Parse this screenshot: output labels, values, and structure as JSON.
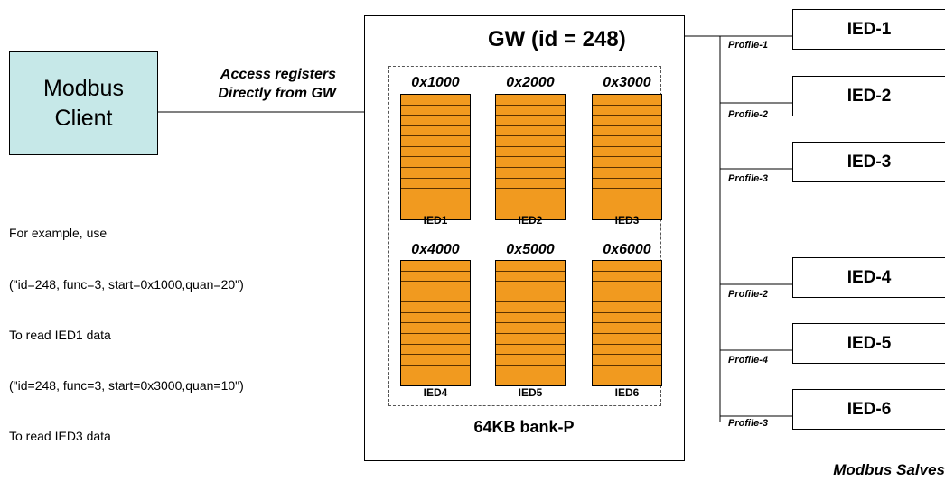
{
  "client": {
    "line1": "Modbus",
    "line2": "Client"
  },
  "access": {
    "line1": "Access registers",
    "line2": "Directly from GW"
  },
  "example": {
    "lines": [
      "For example, use",
      "(\"id=248, func=3, start=0x1000,quan=20\")",
      "To read IED1 data",
      "(\"id=248, func=3, start=0x3000,quan=10\")",
      "To read IED3 data"
    ]
  },
  "gateway": {
    "title": "GW (id = 248)",
    "bank_label": "64KB bank-P"
  },
  "register_blocks": [
    {
      "address": "0x1000",
      "ied": "IED1"
    },
    {
      "address": "0x2000",
      "ied": "IED2"
    },
    {
      "address": "0x3000",
      "ied": "IED3"
    },
    {
      "address": "0x4000",
      "ied": "IED4"
    },
    {
      "address": "0x5000",
      "ied": "IED5"
    },
    {
      "address": "0x6000",
      "ied": "IED6"
    }
  ],
  "register_rows": 12,
  "slaves": [
    {
      "name": "IED-1",
      "profile": "Profile-1"
    },
    {
      "name": "IED-2",
      "profile": "Profile-2"
    },
    {
      "name": "IED-3",
      "profile": "Profile-3"
    },
    {
      "name": "IED-4",
      "profile": "Profile-2"
    },
    {
      "name": "IED-5",
      "profile": "Profile-4"
    },
    {
      "name": "IED-6",
      "profile": "Profile-3"
    }
  ],
  "slaves_label": "Modbus Salves",
  "colors": {
    "client_fill": "#c6e8e8",
    "register_fill": "#f19a1f",
    "register_lines": "#5a3200"
  }
}
